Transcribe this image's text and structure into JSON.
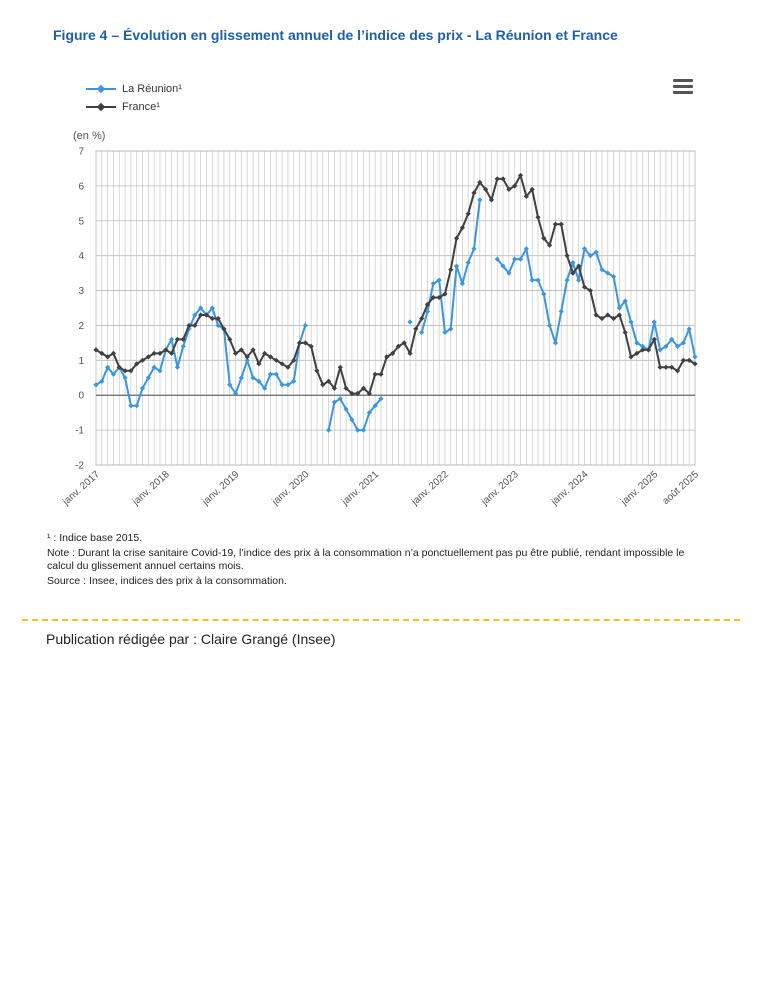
{
  "figure_title": "Figure 4 – Évolution en glissement annuel de l’indice des prix - La Réunion et France",
  "menu_icon": "hamburger-menu-icon",
  "notes": {
    "footnote": "¹ : Indice base 2015.",
    "note": "Note : Durant la crise sanitaire Covid-19, l’indice des prix à la consommation n’a ponctuellement pas pu être publié, rendant impossible le calcul du glissement annuel certains mois.",
    "source": "Source : Insee, indices des prix à la consommation."
  },
  "author": "Publication rédigée par : Claire Grangé (Insee)",
  "colors": {
    "title": "#1f5fa8",
    "reunion": "#3a96e0",
    "france": "#404040",
    "separator": "#f2c21b"
  },
  "chart_data": {
    "type": "line",
    "ylabel": "(en %)",
    "ylim": [
      -2,
      7
    ],
    "yticks": [
      -2,
      -1,
      0,
      1,
      2,
      3,
      4,
      5,
      6,
      7
    ],
    "grid": true,
    "legend_position": "top-left",
    "x_start": "janv. 2017",
    "x_end": "août 2025",
    "xtick_labels": [
      "janv. 2017",
      "janv. 2018",
      "janv. 2019",
      "janv. 2020",
      "janv. 2021",
      "janv. 2022",
      "janv. 2023",
      "janv. 2024",
      "janv. 2025",
      "août 2025"
    ],
    "xtick_index": [
      0,
      12,
      24,
      36,
      48,
      60,
      72,
      84,
      96,
      103
    ],
    "series": [
      {
        "name": "La Réunion¹",
        "values": [
          0.3,
          0.4,
          0.8,
          0.6,
          0.8,
          0.5,
          -0.3,
          -0.3,
          0.2,
          0.5,
          0.8,
          0.7,
          1.3,
          1.6,
          0.8,
          1.4,
          1.9,
          2.3,
          2.5,
          2.3,
          2.5,
          2.0,
          1.9,
          0.3,
          0.05,
          0.5,
          1.0,
          0.5,
          0.4,
          0.2,
          0.6,
          0.6,
          0.3,
          0.3,
          0.4,
          1.5,
          2.0,
          null,
          null,
          null,
          -1.0,
          -0.2,
          -0.1,
          -0.4,
          -0.7,
          -1.0,
          -1.0,
          -0.5,
          -0.3,
          -0.1,
          null,
          null,
          null,
          null,
          2.1,
          null,
          1.8,
          2.4,
          3.2,
          3.3,
          1.8,
          1.9,
          3.7,
          3.2,
          3.8,
          4.2,
          5.6,
          null,
          null,
          3.9,
          3.7,
          3.5,
          3.9,
          3.9,
          4.2,
          3.3,
          3.3,
          2.9,
          2.0,
          1.5,
          2.4,
          3.3,
          3.8,
          3.3,
          4.2,
          4.0,
          4.1,
          3.6,
          3.5,
          3.4,
          2.5,
          2.7,
          2.1,
          1.5,
          1.4,
          1.3,
          2.1,
          1.3,
          1.4,
          1.6,
          1.4,
          1.5,
          1.9,
          1.1
        ]
      },
      {
        "name": "France¹",
        "values": [
          1.3,
          1.2,
          1.1,
          1.2,
          0.8,
          0.7,
          0.7,
          0.9,
          1.0,
          1.1,
          1.2,
          1.2,
          1.3,
          1.2,
          1.6,
          1.6,
          2.0,
          2.0,
          2.3,
          2.3,
          2.2,
          2.2,
          1.9,
          1.6,
          1.2,
          1.3,
          1.1,
          1.3,
          0.9,
          1.2,
          1.1,
          1.0,
          0.9,
          0.8,
          1.0,
          1.5,
          1.5,
          1.4,
          0.7,
          0.3,
          0.4,
          0.2,
          0.8,
          0.2,
          0.05,
          0.05,
          0.2,
          0.05,
          0.6,
          0.6,
          1.1,
          1.2,
          1.4,
          1.5,
          1.2,
          1.9,
          2.2,
          2.6,
          2.8,
          2.8,
          2.9,
          3.6,
          4.5,
          4.8,
          5.2,
          5.8,
          6.1,
          5.9,
          5.6,
          6.2,
          6.2,
          5.9,
          6.0,
          6.3,
          5.7,
          5.9,
          5.1,
          4.5,
          4.3,
          4.9,
          4.9,
          4.0,
          3.5,
          3.7,
          3.1,
          3.0,
          2.3,
          2.2,
          2.3,
          2.2,
          2.3,
          1.8,
          1.1,
          1.2,
          1.3,
          1.3,
          1.6,
          0.8,
          0.8,
          0.8,
          0.7,
          1.0,
          1.0,
          0.9
        ]
      }
    ]
  }
}
